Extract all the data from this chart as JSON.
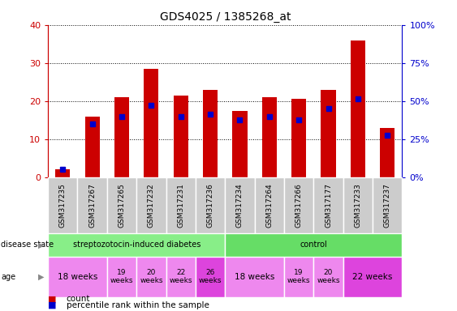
{
  "title": "GDS4025 / 1385268_at",
  "samples": [
    "GSM317235",
    "GSM317267",
    "GSM317265",
    "GSM317232",
    "GSM317231",
    "GSM317236",
    "GSM317234",
    "GSM317264",
    "GSM317266",
    "GSM317177",
    "GSM317233",
    "GSM317237"
  ],
  "red_values": [
    2.0,
    16.0,
    21.0,
    28.5,
    21.5,
    23.0,
    17.5,
    21.0,
    20.5,
    23.0,
    36.0,
    13.0
  ],
  "blue_values": [
    2.0,
    14.0,
    16.0,
    19.0,
    16.0,
    16.5,
    15.0,
    16.0,
    15.0,
    18.0,
    20.5,
    11.0
  ],
  "ylim_left": [
    0,
    40
  ],
  "ylim_right": [
    0,
    100
  ],
  "yticks_left": [
    0,
    10,
    20,
    30,
    40
  ],
  "yticks_right": [
    0,
    25,
    50,
    75,
    100
  ],
  "ytick_labels_right": [
    "0%",
    "25%",
    "50%",
    "75%",
    "100%"
  ],
  "bar_color": "#cc0000",
  "blue_color": "#0000cc",
  "disease_state_groups": [
    {
      "label": "streptozotocin-induced diabetes",
      "start": 0,
      "end": 6,
      "color": "#88ee88"
    },
    {
      "label": "control",
      "start": 6,
      "end": 12,
      "color": "#66dd66"
    }
  ],
  "age_groups": [
    {
      "label": "18 weeks",
      "start": 0,
      "end": 2,
      "color": "#ee88ee",
      "fontsize": 7.5,
      "bold": false
    },
    {
      "label": "19\nweeks",
      "start": 2,
      "end": 3,
      "color": "#ee88ee",
      "fontsize": 6.5,
      "bold": false
    },
    {
      "label": "20\nweeks",
      "start": 3,
      "end": 4,
      "color": "#ee88ee",
      "fontsize": 6.5,
      "bold": false
    },
    {
      "label": "22\nweeks",
      "start": 4,
      "end": 5,
      "color": "#ee88ee",
      "fontsize": 6.5,
      "bold": false
    },
    {
      "label": "26\nweeks",
      "start": 5,
      "end": 6,
      "color": "#dd44dd",
      "fontsize": 6.5,
      "bold": false
    },
    {
      "label": "18 weeks",
      "start": 6,
      "end": 8,
      "color": "#ee88ee",
      "fontsize": 7.5,
      "bold": false
    },
    {
      "label": "19\nweeks",
      "start": 8,
      "end": 9,
      "color": "#ee88ee",
      "fontsize": 6.5,
      "bold": false
    },
    {
      "label": "20\nweeks",
      "start": 9,
      "end": 10,
      "color": "#ee88ee",
      "fontsize": 6.5,
      "bold": false
    },
    {
      "label": "22 weeks",
      "start": 10,
      "end": 12,
      "color": "#dd44dd",
      "fontsize": 7.5,
      "bold": false
    }
  ],
  "left_axis_color": "#cc0000",
  "right_axis_color": "#0000cc",
  "sample_box_color": "#cccccc",
  "fig_width": 5.63,
  "fig_height": 3.84,
  "dpi": 100
}
